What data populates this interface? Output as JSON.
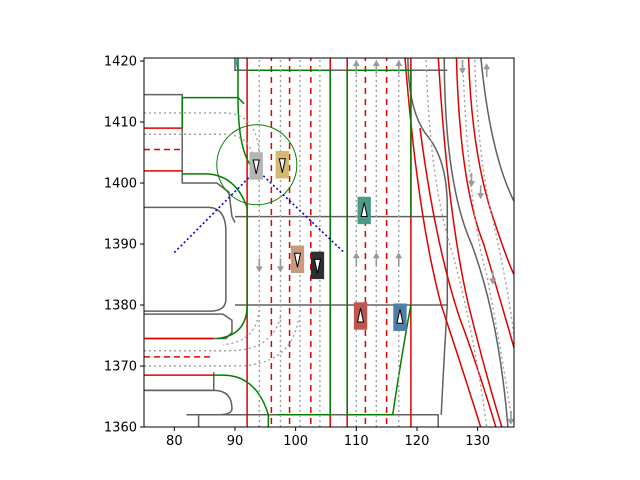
{
  "chart_data": {
    "type": "scatter",
    "title": "",
    "xlabel": "",
    "ylabel": "",
    "xlim": [
      75,
      136
    ],
    "ylim": [
      1360,
      1420.5
    ],
    "xticks": [
      80,
      90,
      100,
      110,
      120,
      130
    ],
    "yticks": [
      1360,
      1370,
      1380,
      1390,
      1400,
      1410,
      1420
    ],
    "grid": false,
    "legend": "none",
    "colors": {
      "road_edge": "#606060",
      "lane_boundary": "#e00000",
      "crosswalk": "#008000",
      "centerline": "#a0a0a0",
      "trajectory": "#0000dd",
      "arrow": "#999999"
    },
    "vehicles": [
      {
        "x": 93.5,
        "y": 1402.8,
        "heading": "down",
        "color": "#b4b4b4"
      },
      {
        "x": 97.8,
        "y": 1403.0,
        "heading": "down",
        "color": "#d7b870"
      },
      {
        "x": 100.3,
        "y": 1387.5,
        "heading": "down",
        "color": "#c89a7e"
      },
      {
        "x": 103.6,
        "y": 1386.5,
        "heading": "down",
        "color": "#2f2f2f"
      },
      {
        "x": 111.3,
        "y": 1395.5,
        "heading": "up",
        "color": "#4a9a8a"
      },
      {
        "x": 110.7,
        "y": 1378.2,
        "heading": "up",
        "color": "#c0554e"
      },
      {
        "x": 117.2,
        "y": 1378.0,
        "heading": "up",
        "color": "#4f7fa6"
      }
    ],
    "trajectory": [
      [
        80,
        1388.6
      ],
      [
        93.6,
        1402.2
      ],
      [
        108,
        1388.6
      ]
    ],
    "circle": {
      "cx": 93.6,
      "cy": 1403.0,
      "r": 6.6
    }
  }
}
